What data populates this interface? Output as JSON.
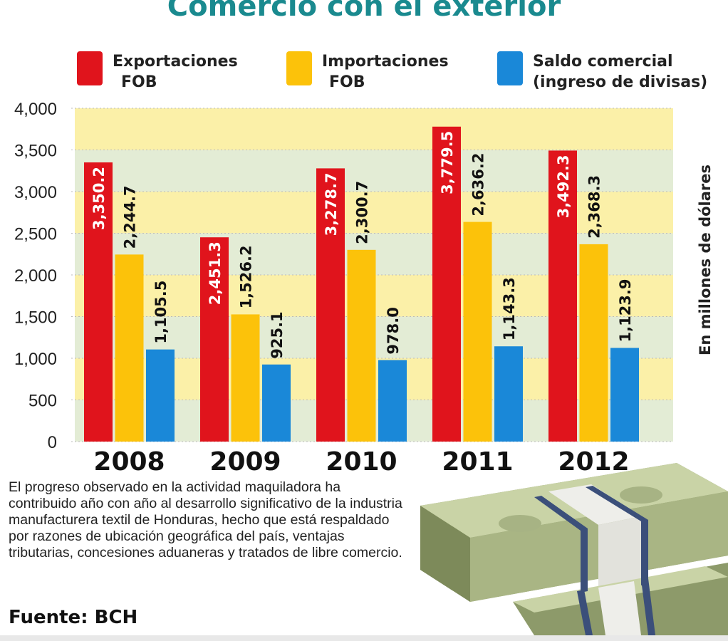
{
  "chart_data": {
    "type": "bar",
    "title": "Comercio con el exterior",
    "categories": [
      "2008",
      "2009",
      "2010",
      "2011",
      "2012"
    ],
    "series": [
      {
        "name": "Exportaciones FOB",
        "values": [
          3350.2,
          2451.3,
          3278.7,
          3779.5,
          3492.3
        ],
        "labels": [
          "3,350.2",
          "2,451.3",
          "3,278.7",
          "3,779.5",
          "3,492.3"
        ],
        "color": "#e0141c"
      },
      {
        "name": "Importaciones FOB",
        "values": [
          2244.7,
          1526.2,
          2300.7,
          2636.2,
          2368.3
        ],
        "labels": [
          "2,244.7",
          "1,526.2",
          "2,300.7",
          "2,636.2",
          "2,368.3"
        ],
        "color": "#fcc20a"
      },
      {
        "name": "Saldo comercial (ingreso de divisas)",
        "values": [
          1105.5,
          925.1,
          978.0,
          1143.3,
          1123.9
        ],
        "labels": [
          "1,105.5",
          "925.1",
          "978.0",
          "1,143.3",
          "1,123.9"
        ],
        "color": "#1a88d8"
      }
    ],
    "ylabel": "En millones de dólares",
    "ylim": [
      0,
      4000
    ],
    "yticks": [
      0,
      500,
      1000,
      1500,
      2000,
      2500,
      3000,
      3500,
      4000
    ],
    "ytick_labels": [
      "0",
      "500",
      "1,000",
      "1,500",
      "2,000",
      "2,500",
      "3,000",
      "3,500",
      "4,000"
    ],
    "band_colors": [
      "#e3ecd5",
      "#fbf0a8"
    ],
    "legend": "top"
  },
  "legend": {
    "items": [
      {
        "line1": "Exportaciones",
        "line2": "FOB"
      },
      {
        "line1": "Importaciones",
        "line2": "FOB"
      },
      {
        "line1": "Saldo comercial",
        "line2": "(ingreso de divisas)"
      }
    ]
  },
  "note": "El progreso observado en la actividad maquiladora ha contribuido año con año al desarrollo significativo de la industria manufacturera textil de Honduras, hecho que está respaldado por razones de ubicación geográfica del país, ventajas tributarias, concesiones aduaneras y tratados de libre comercio.",
  "source": "Fuente: BCH",
  "image": "money-stacks-illustration"
}
